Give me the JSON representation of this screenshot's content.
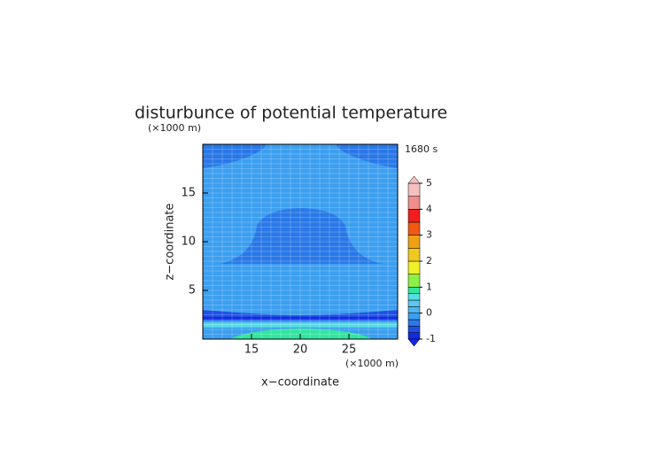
{
  "chart_data": {
    "type": "contour",
    "title": "disturbunce of potential temperature",
    "time_label": "1680 s",
    "x_label": "x−coordinate",
    "y_label": "z−coordinate",
    "x_unit": "(×1000 m)",
    "y_unit": "(×1000 m)",
    "xlim": [
      10,
      30
    ],
    "xticks": [
      15,
      20,
      25
    ],
    "ylim": [
      0,
      20
    ],
    "yticks": [
      5,
      10,
      15
    ],
    "colorbar": {
      "levels": [
        -1,
        -0.75,
        -0.5,
        -0.25,
        0,
        0.25,
        0.5,
        0.75,
        1,
        1.5,
        2,
        2.5,
        3,
        3.5,
        4,
        4.5,
        5
      ],
      "colors": [
        "#1428e6",
        "#1e50e6",
        "#2a78e8",
        "#3c9ff0",
        "#50b4f0",
        "#5ac8f0",
        "#50e0e0",
        "#32e6a0",
        "#8cf046",
        "#f0f028",
        "#f0c81e",
        "#f0a014",
        "#f05a14",
        "#f01e1e",
        "#f08c8c",
        "#f5c0c0"
      ],
      "ticks": [
        -1,
        0,
        1,
        2,
        3,
        4,
        5
      ]
    }
  }
}
